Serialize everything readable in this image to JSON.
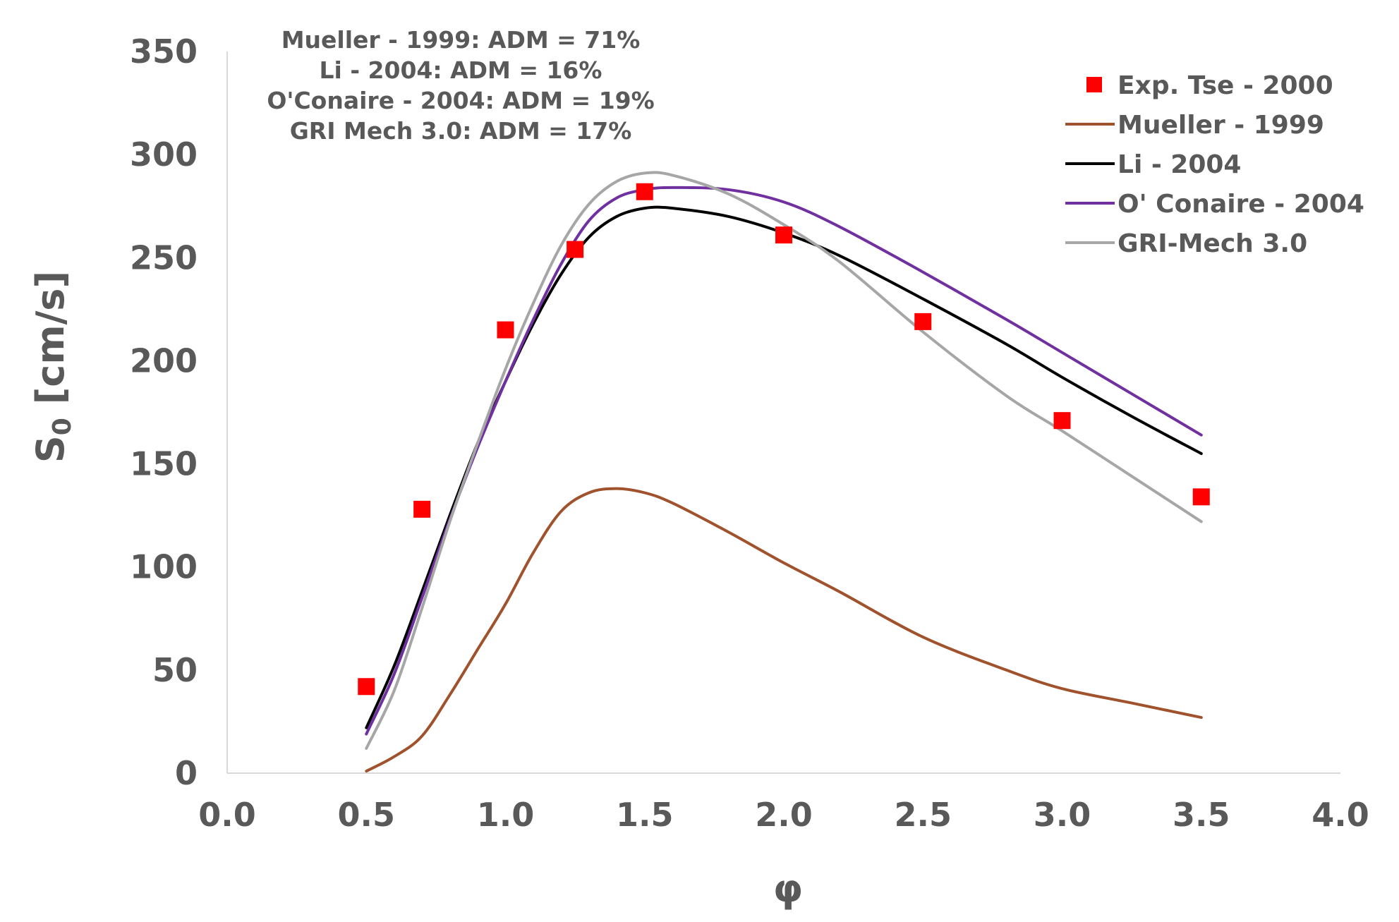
{
  "chart_data": {
    "type": "line",
    "xlabel": "φ",
    "ylabel_main": "S",
    "ylabel_sub": "0",
    "ylabel_rest": " [cm/s]",
    "xlim": [
      0.0,
      4.0
    ],
    "ylim": [
      0,
      350
    ],
    "x_ticks": [
      "0.0",
      "0.5",
      "1.0",
      "1.5",
      "2.0",
      "2.5",
      "3.0",
      "3.5",
      "4.0"
    ],
    "y_ticks": [
      "0",
      "50",
      "100",
      "150",
      "200",
      "250",
      "300",
      "350"
    ],
    "x_tick_values": [
      0.0,
      0.5,
      1.0,
      1.5,
      2.0,
      2.5,
      3.0,
      3.5,
      4.0
    ],
    "y_tick_values": [
      0,
      50,
      100,
      150,
      200,
      250,
      300,
      350
    ],
    "grid": false,
    "legend_position": "top-right",
    "annotations": [
      "Mueller - 1999: ADM = 71%",
      "Li - 2004: ADM = 16%",
      "O'Conaire - 2004: ADM = 19%",
      "GRI Mech 3.0: ADM = 17%"
    ],
    "series": [
      {
        "name": "Exp. Tse - 2000",
        "kind": "scatter",
        "color": "#ff0000",
        "x": [
          0.5,
          0.7,
          1.0,
          1.25,
          1.5,
          2.0,
          2.5,
          3.0,
          3.5
        ],
        "y": [
          42,
          128,
          215,
          254,
          282,
          261,
          219,
          171,
          134
        ]
      },
      {
        "name": "Mueller - 1999",
        "kind": "line",
        "color": "#a0522d",
        "x": [
          0.5,
          0.6,
          0.7,
          0.8,
          0.9,
          1.0,
          1.1,
          1.2,
          1.3,
          1.4,
          1.5,
          1.6,
          1.8,
          2.0,
          2.2,
          2.5,
          2.8,
          3.0,
          3.25,
          3.5
        ],
        "y": [
          1,
          8,
          18,
          38,
          60,
          82,
          107,
          127,
          136,
          138,
          136,
          131,
          117,
          102,
          88,
          66,
          50,
          41,
          34,
          27
        ]
      },
      {
        "name": "Li - 2004",
        "kind": "line",
        "color": "#000000",
        "x": [
          0.5,
          0.6,
          0.7,
          0.8,
          0.9,
          1.0,
          1.1,
          1.2,
          1.3,
          1.4,
          1.5,
          1.6,
          1.8,
          2.0,
          2.2,
          2.5,
          2.8,
          3.0,
          3.25,
          3.5
        ],
        "y": [
          22,
          52,
          88,
          125,
          160,
          190,
          218,
          242,
          260,
          270,
          274,
          274,
          270,
          262,
          251,
          230,
          208,
          192,
          173,
          155
        ]
      },
      {
        "name": "O' Conaire - 2004",
        "kind": "line",
        "color": "#7030a0",
        "x": [
          0.5,
          0.6,
          0.7,
          0.8,
          0.9,
          1.0,
          1.1,
          1.2,
          1.3,
          1.4,
          1.5,
          1.6,
          1.8,
          2.0,
          2.2,
          2.5,
          2.8,
          3.0,
          3.25,
          3.5
        ],
        "y": [
          19,
          48,
          85,
          123,
          158,
          190,
          220,
          247,
          268,
          279,
          283,
          284,
          283,
          277,
          265,
          243,
          220,
          204,
          184,
          164
        ]
      },
      {
        "name": "GRI-Mech 3.0",
        "kind": "line",
        "color": "#a6a6a6",
        "x": [
          0.5,
          0.6,
          0.7,
          0.8,
          0.9,
          1.0,
          1.1,
          1.2,
          1.3,
          1.4,
          1.5,
          1.6,
          1.8,
          2.0,
          2.2,
          2.5,
          2.8,
          3.0,
          3.25,
          3.5
        ],
        "y": [
          12,
          40,
          80,
          122,
          160,
          196,
          228,
          256,
          276,
          287,
          291,
          290,
          281,
          266,
          248,
          214,
          183,
          166,
          144,
          122
        ]
      }
    ]
  }
}
